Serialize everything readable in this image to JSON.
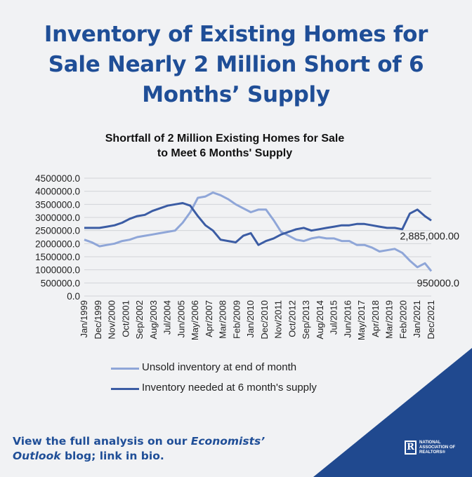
{
  "headline": {
    "line1": "Inventory of Existing Homes for",
    "line2": "Sale Nearly 2 Million Short of 6",
    "line3": "Months’ Supply"
  },
  "footer": {
    "part1": "View the full analysis on our ",
    "emphasis1": "Economists’",
    "emphasis2": "Outlook",
    "part2": " blog; link in bio."
  },
  "logo": {
    "mark": "R",
    "text": "NATIONAL\nASSOCIATION OF\nREALTORS®"
  },
  "colors": {
    "headline": "#1f4e97",
    "series_unsold": "#8fa6d8",
    "series_needed": "#3b5ca4",
    "corner": "#20498f"
  },
  "chart_data": {
    "type": "line",
    "title_line1": "Shortfall of 2 Million Existing Homes for Sale",
    "title_line2": "to Meet 6 Months' Supply",
    "ylim": [
      0,
      4500000
    ],
    "yticks": [
      0,
      500000,
      1000000,
      1500000,
      2000000,
      2500000,
      3000000,
      3500000,
      4000000,
      4500000
    ],
    "ytick_labels": [
      "0.0",
      "500000.0",
      "1000000.0",
      "1500000.0",
      "2000000.0",
      "2500000.0",
      "3000000.0",
      "3500000.0",
      "4000000.0",
      "4500000.0"
    ],
    "x_start": "Jan/1999",
    "x_end": "Dec/2021",
    "grid": true,
    "legend_position": "bottom",
    "xtick_labels": [
      "Jan/1999",
      "Dec/1999",
      "Nov/2000",
      "Oct/2001",
      "Sep/2002",
      "Aug/2003",
      "Jul/2004",
      "Jun/2005",
      "May/2006",
      "Apr/2007",
      "Mar/2008",
      "Feb/2009",
      "Jan/2010",
      "Dec/2010",
      "Nov/2011",
      "Oct/2012",
      "Sep/2013",
      "Aug/2014",
      "Jul/2015",
      "Jun/2016",
      "May/2017",
      "Apr/2018",
      "Mar/2019",
      "Feb/2020",
      "Jan/2021",
      "Dec/2021"
    ],
    "x": [
      "Jan/1999",
      "Jul/1999",
      "Jan/2000",
      "Jul/2000",
      "Jan/2001",
      "Jul/2001",
      "Jan/2002",
      "Jul/2002",
      "Jan/2003",
      "Jul/2003",
      "Jan/2004",
      "Jul/2004",
      "Jan/2005",
      "Jul/2005",
      "Jan/2006",
      "Jul/2006",
      "Jan/2007",
      "Jul/2007",
      "Jan/2008",
      "Jul/2008",
      "Jan/2009",
      "Jul/2009",
      "Jan/2010",
      "Jul/2010",
      "Jan/2011",
      "Jul/2011",
      "Jan/2012",
      "Jul/2012",
      "Jan/2013",
      "Jul/2013",
      "Jan/2014",
      "Jul/2014",
      "Jan/2015",
      "Jul/2015",
      "Jan/2016",
      "Jul/2016",
      "Jan/2017",
      "Jul/2017",
      "Jan/2018",
      "Jul/2018",
      "Jan/2019",
      "Jul/2019",
      "Jan/2020",
      "Jul/2020",
      "Jan/2021",
      "Jul/2021",
      "Dec/2021"
    ],
    "series": [
      {
        "name": "Unsold inventory at end of month",
        "color": "#8fa6d8",
        "values": [
          2150000,
          2050000,
          1900000,
          1950000,
          2000000,
          2100000,
          2150000,
          2250000,
          2300000,
          2350000,
          2400000,
          2450000,
          2500000,
          2800000,
          3200000,
          3750000,
          3800000,
          3950000,
          3850000,
          3700000,
          3500000,
          3350000,
          3200000,
          3300000,
          3300000,
          2900000,
          2450000,
          2300000,
          2150000,
          2100000,
          2200000,
          2250000,
          2200000,
          2200000,
          2100000,
          2100000,
          1950000,
          1950000,
          1850000,
          1700000,
          1750000,
          1800000,
          1650000,
          1350000,
          1100000,
          1250000,
          950000
        ]
      },
      {
        "name": "Inventory needed at 6 month's supply",
        "color": "#3b5ca4",
        "values": [
          2600000,
          2600000,
          2600000,
          2650000,
          2700000,
          2800000,
          2950000,
          3050000,
          3100000,
          3250000,
          3350000,
          3450000,
          3500000,
          3550000,
          3450000,
          3050000,
          2700000,
          2500000,
          2150000,
          2100000,
          2050000,
          2300000,
          2400000,
          1950000,
          2100000,
          2200000,
          2350000,
          2450000,
          2550000,
          2600000,
          2500000,
          2550000,
          2600000,
          2650000,
          2700000,
          2700000,
          2750000,
          2750000,
          2700000,
          2650000,
          2600000,
          2600000,
          2550000,
          3150000,
          3300000,
          3050000,
          2885000
        ]
      }
    ],
    "annotations": [
      {
        "text": "2,885,000.00",
        "value": 2885000,
        "series": 1
      },
      {
        "text": "950000.0",
        "value": 950000,
        "series": 0
      }
    ]
  }
}
